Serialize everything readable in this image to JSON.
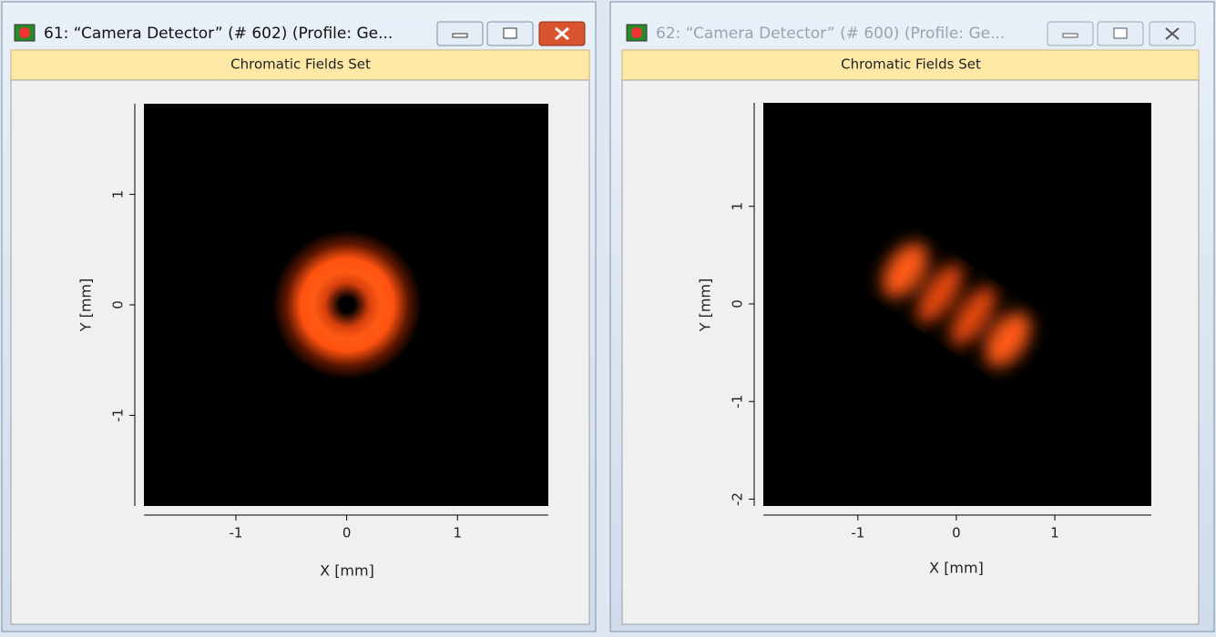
{
  "windows": [
    {
      "title": "61: “Camera Detector” (# 602) (Profile: Ge...",
      "tab": "Chromatic Fields Set",
      "plot": {
        "xlabel": "X [mm]",
        "ylabel": "Y [mm]",
        "xlim": [
          -1.83,
          1.82
        ],
        "ylim": [
          -1.82,
          1.82
        ],
        "xticks": [
          -1,
          0,
          1
        ],
        "yticks": [
          1,
          0,
          -1
        ]
      }
    },
    {
      "title": "62: “Camera Detector” (# 600) (Profile: Ge...",
      "tab": "Chromatic Fields Set",
      "plot": {
        "xlabel": "X [mm]",
        "ylabel": "Y [mm]",
        "xlim": [
          -1.96,
          1.98
        ],
        "ylim": [
          -2.07,
          2.06
        ],
        "xticks": [
          -1,
          0,
          1
        ],
        "yticks": [
          1,
          0,
          -1,
          -2
        ]
      }
    }
  ]
}
